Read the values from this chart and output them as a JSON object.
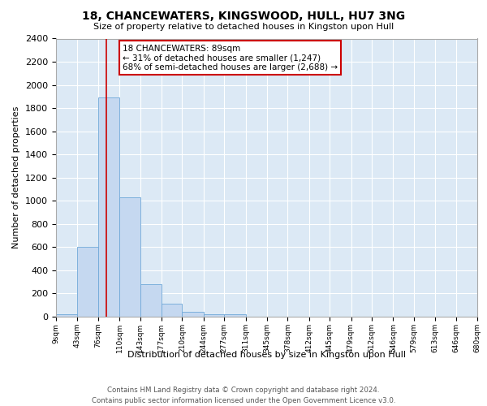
{
  "title": "18, CHANCEWATERS, KINGSWOOD, HULL, HU7 3NG",
  "subtitle": "Size of property relative to detached houses in Kingston upon Hull",
  "xlabel": "Distribution of detached houses by size in Kingston upon Hull",
  "ylabel": "Number of detached properties",
  "footer_line1": "Contains HM Land Registry data © Crown copyright and database right 2024.",
  "footer_line2": "Contains public sector information licensed under the Open Government Licence v3.0.",
  "annotation_line1": "18 CHANCEWATERS: 89sqm",
  "annotation_line2": "← 31% of detached houses are smaller (1,247)",
  "annotation_line3": "68% of semi-detached houses are larger (2,688) →",
  "property_size": 89,
  "red_line_x": 89,
  "bin_edges": [
    9,
    43,
    76,
    110,
    143,
    177,
    210,
    244,
    277,
    311,
    345,
    378,
    412,
    445,
    479,
    512,
    546,
    579,
    613,
    646,
    680
  ],
  "bar_heights": [
    20,
    600,
    1890,
    1030,
    280,
    110,
    40,
    20,
    20,
    0,
    0,
    0,
    0,
    0,
    0,
    0,
    0,
    0,
    0,
    0
  ],
  "bar_color": "#c5d8f0",
  "bar_edge_color": "#6fa8d8",
  "red_line_color": "#cc0000",
  "bg_color": "#dce9f5",
  "ylim": [
    0,
    2400
  ],
  "yticks": [
    0,
    200,
    400,
    600,
    800,
    1000,
    1200,
    1400,
    1600,
    1800,
    2000,
    2200,
    2400
  ]
}
